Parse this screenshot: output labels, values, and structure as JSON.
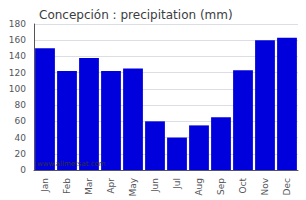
{
  "chart_data": {
    "type": "bar",
    "title": "Concepción : precipitation (mm)",
    "categories": [
      "Jan",
      "Feb",
      "Mar",
      "Apr",
      "May",
      "Jun",
      "Jul",
      "Aug",
      "Sep",
      "Oct",
      "Nov",
      "Dec"
    ],
    "values": [
      150,
      122,
      138,
      122,
      125,
      60,
      40,
      55,
      65,
      123,
      160,
      163
    ],
    "color": "#0000dd",
    "ylim": [
      0,
      180
    ],
    "yticks": [
      0,
      20,
      40,
      60,
      80,
      100,
      120,
      140,
      160,
      180
    ],
    "grid": true,
    "annotations": [
      "www.allmetsat.com"
    ]
  }
}
